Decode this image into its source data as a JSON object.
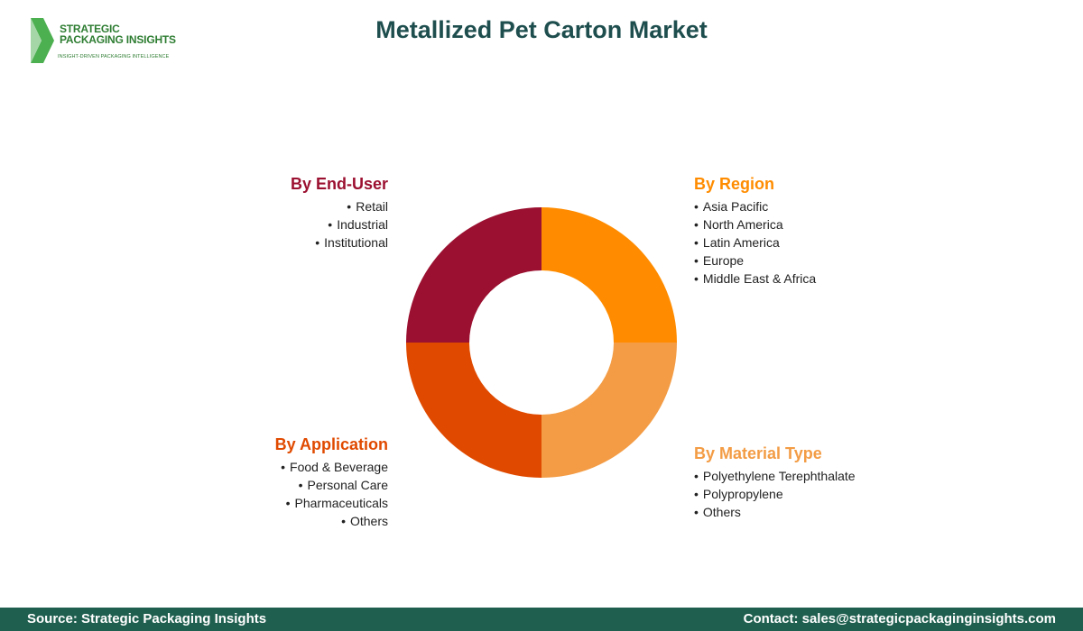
{
  "logo": {
    "line1": "STRATEGIC",
    "line2": "PACKAGING INSIGHTS",
    "tagline": "INSIGHT-DRIVEN PACKAGING INTELLIGENCE"
  },
  "title": "Metallized Pet Carton Market",
  "chart_data": {
    "type": "pie",
    "title": "Metallized Pet Carton Market",
    "slices": [
      {
        "label": "By Region",
        "value": 25,
        "color": "#ff8c00"
      },
      {
        "label": "By Material Type",
        "value": 25,
        "color": "#f39c45"
      },
      {
        "label": "By Application",
        "value": 25,
        "color": "#e04a00"
      },
      {
        "label": "By End-User",
        "value": 25,
        "color": "#9b1030"
      }
    ]
  },
  "segments": {
    "end_user": {
      "heading": "By End-User",
      "color": "#9b1030",
      "items": [
        "Retail",
        "Industrial",
        "Institutional"
      ]
    },
    "region": {
      "heading": "By Region",
      "color": "#ff8c00",
      "items": [
        "Asia Pacific",
        "North America",
        "Latin America",
        "Europe",
        "Middle East & Africa"
      ]
    },
    "application": {
      "heading": "By Application",
      "color": "#e04a00",
      "items": [
        "Food & Beverage",
        "Personal Care",
        "Pharmaceuticals",
        "Others"
      ]
    },
    "material": {
      "heading": "By Material Type",
      "color": "#f39c45",
      "items": [
        "Polyethylene Terephthalate",
        "Polypropylene",
        "Others"
      ]
    }
  },
  "footer": {
    "source": "Source: Strategic Packaging Insights",
    "contact": "Contact: sales@strategicpackaginginsights.com"
  }
}
